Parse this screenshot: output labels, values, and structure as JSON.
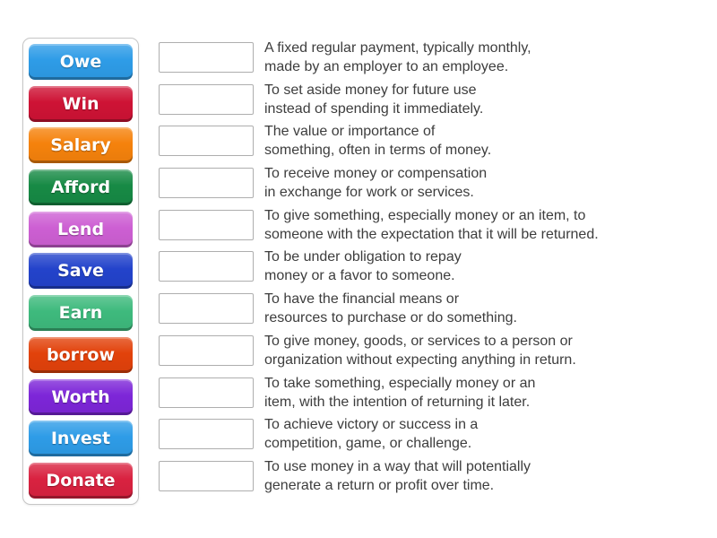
{
  "keywords": [
    {
      "label": "Owe",
      "color": "#2e9ce7"
    },
    {
      "label": "Win",
      "color": "#ce1335"
    },
    {
      "label": "Salary",
      "color": "#f5820c"
    },
    {
      "label": "Afford",
      "color": "#178a45"
    },
    {
      "label": "Lend",
      "color": "#cd5fd3"
    },
    {
      "label": "Save",
      "color": "#2343cb"
    },
    {
      "label": "Earn",
      "color": "#3eba7d"
    },
    {
      "label": "borrow",
      "color": "#e2420b"
    },
    {
      "label": "Worth",
      "color": "#7d26d8"
    },
    {
      "label": "Invest",
      "color": "#2e9ce7"
    },
    {
      "label": "Donate",
      "color": "#d92240"
    }
  ],
  "definitions": [
    {
      "lines": [
        "A fixed regular payment, typically monthly,",
        "made by an employer to an employee."
      ]
    },
    {
      "lines": [
        "To set aside money for future use",
        "instead of spending it immediately."
      ]
    },
    {
      "lines": [
        "The value or importance of",
        "something, often in terms of money."
      ]
    },
    {
      "lines": [
        "To receive money or compensation",
        "in exchange for work or services."
      ]
    },
    {
      "lines": [
        "To give something, especially money or an item, to",
        "someone with the expectation that it will be returned."
      ]
    },
    {
      "lines": [
        "To be under obligation to repay",
        "money or a favor to someone."
      ]
    },
    {
      "lines": [
        "To have the financial means or",
        "resources to purchase or do something."
      ]
    },
    {
      "lines": [
        "To give money, goods, or services to a person or",
        "organization without expecting anything in return."
      ]
    },
    {
      "lines": [
        "To take something, especially money or an",
        "item, with the intention of returning it later."
      ]
    },
    {
      "lines": [
        "To achieve victory or success in a",
        "competition, game, or challenge."
      ]
    },
    {
      "lines": [
        "To use money in a way that will potentially",
        "generate a return or profit over time."
      ]
    }
  ]
}
